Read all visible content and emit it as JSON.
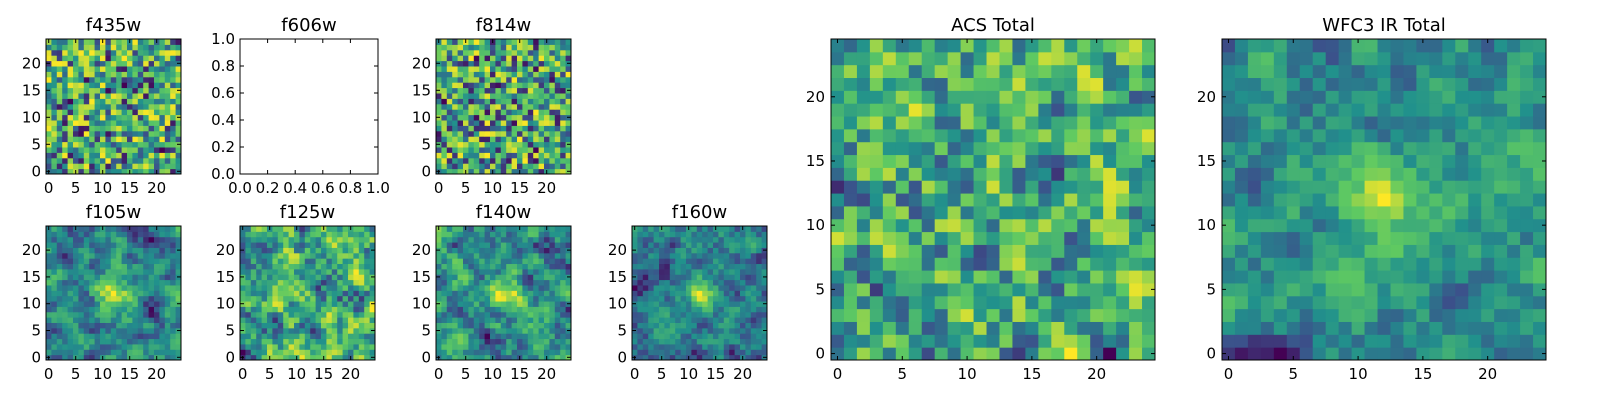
{
  "colormap": [
    "#440154",
    "#3b528b",
    "#21918c",
    "#5ec962",
    "#fde725"
  ],
  "chart_data": [
    {
      "type": "heatmap",
      "title": "f435w",
      "xticks": [
        "0",
        "5",
        "10",
        "15",
        "20"
      ],
      "yticks": [
        "0",
        "5",
        "10",
        "15",
        "20"
      ],
      "xlim": [
        0,
        25
      ],
      "ylim": [
        0,
        25
      ],
      "values": [],
      "seed": 11,
      "blur": 0
    },
    {
      "type": "heatmap",
      "title": "f606w",
      "xticks": [
        "0.0",
        "0.2",
        "0.4",
        "0.6",
        "0.8",
        "1.0"
      ],
      "yticks": [
        "0.0",
        "0.2",
        "0.4",
        "0.6",
        "0.8",
        "1.0"
      ],
      "xlim": [
        0,
        1
      ],
      "ylim": [
        0,
        1
      ],
      "values": [],
      "empty": true
    },
    {
      "type": "heatmap",
      "title": "f814w",
      "xticks": [
        "0",
        "5",
        "10",
        "15",
        "20"
      ],
      "yticks": [
        "0",
        "5",
        "10",
        "15",
        "20"
      ],
      "xlim": [
        0,
        25
      ],
      "ylim": [
        0,
        25
      ],
      "values": [],
      "seed": 23,
      "blur": 0
    },
    {
      "type": "heatmap",
      "title": "f105w",
      "xticks": [
        "0",
        "5",
        "10",
        "15",
        "20"
      ],
      "yticks": [
        "0",
        "5",
        "10",
        "15",
        "20"
      ],
      "xlim": [
        0,
        25
      ],
      "ylim": [
        0,
        25
      ],
      "values": [],
      "seed": 31,
      "blur": 1,
      "peak": [
        12,
        12
      ]
    },
    {
      "type": "heatmap",
      "title": "f125w",
      "xticks": [
        "0",
        "5",
        "10",
        "15",
        "20"
      ],
      "yticks": [
        "0",
        "5",
        "10",
        "15",
        "20"
      ],
      "xlim": [
        0,
        25
      ],
      "ylim": [
        0,
        25
      ],
      "values": [],
      "seed": 47,
      "blur": 1
    },
    {
      "type": "heatmap",
      "title": "f140w",
      "xticks": [
        "0",
        "5",
        "10",
        "15",
        "20"
      ],
      "yticks": [
        "0",
        "5",
        "10",
        "15",
        "20"
      ],
      "xlim": [
        0,
        25
      ],
      "ylim": [
        0,
        25
      ],
      "values": [],
      "seed": 59,
      "blur": 1,
      "peak": [
        13,
        12
      ]
    },
    {
      "type": "heatmap",
      "title": "f160w",
      "xticks": [
        "0",
        "5",
        "10",
        "15",
        "20"
      ],
      "yticks": [
        "0",
        "5",
        "10",
        "15",
        "20"
      ],
      "xlim": [
        0,
        25
      ],
      "ylim": [
        0,
        25
      ],
      "values": [],
      "seed": 67,
      "blur": 1,
      "peak": [
        12,
        12
      ]
    },
    {
      "type": "heatmap",
      "title": "ACS Total",
      "xticks": [
        "0",
        "5",
        "10",
        "15",
        "20"
      ],
      "yticks": [
        "0",
        "5",
        "10",
        "15",
        "20"
      ],
      "xlim": [
        0,
        25
      ],
      "ylim": [
        0,
        25
      ],
      "values": [],
      "seed": 79,
      "blur": 0.5
    },
    {
      "type": "heatmap",
      "title": "WFC3 IR Total",
      "xticks": [
        "0",
        "5",
        "10",
        "15",
        "20"
      ],
      "yticks": [
        "0",
        "5",
        "10",
        "15",
        "20"
      ],
      "xlim": [
        0,
        25
      ],
      "ylim": [
        0,
        25
      ],
      "values": [],
      "seed": 97,
      "blur": 1,
      "peak": [
        12,
        12
      ]
    }
  ]
}
